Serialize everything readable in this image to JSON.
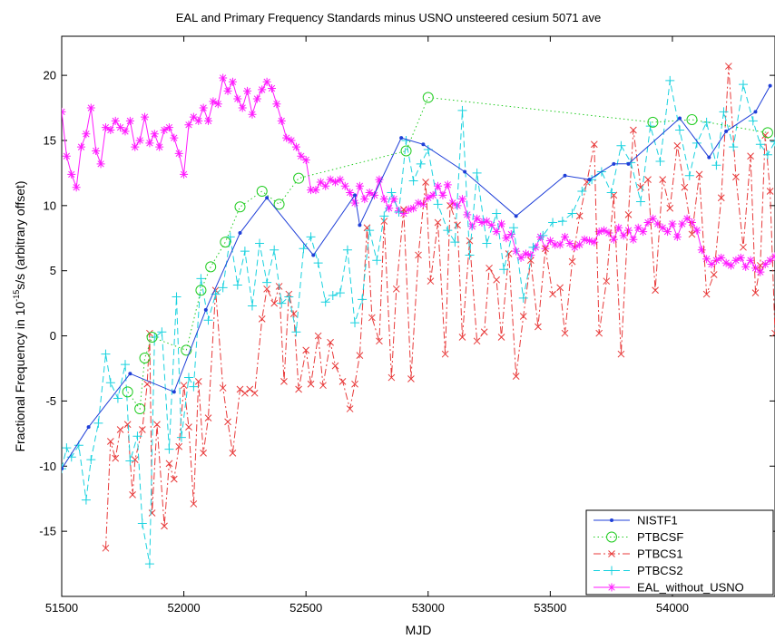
{
  "chart_data": {
    "type": "line",
    "title": "EAL and Primary Frequency Standards minus USNO unsteered cesium 5071 ave",
    "xlabel": "MJD",
    "ylabel_prefix": "Fractional Frequency in 10",
    "ylabel_exponent": "-15",
    "ylabel_suffix": "s/s (arbitrary offset)",
    "xlim": [
      51500,
      54420
    ],
    "ylim": [
      -20,
      23
    ],
    "x_ticks": [
      51500,
      52000,
      52500,
      53000,
      53500,
      54000
    ],
    "x_tick_labels": [
      "51500",
      "52000",
      "52500",
      "53000",
      "53500",
      "54000"
    ],
    "y_ticks": [
      -20,
      -15,
      -10,
      -5,
      0,
      5,
      10,
      15,
      20
    ],
    "y_tick_labels": [
      "-20",
      "-15",
      "-10",
      "-5",
      "0",
      "5",
      "10",
      "15",
      "20"
    ],
    "grid": false,
    "legend_position": "bottom-right",
    "series": [
      {
        "name": "NISTF1",
        "color": "#1f3fd8",
        "line": "solid",
        "marker": "dot",
        "x": [
          51500,
          51610,
          51780,
          51960,
          52090,
          52230,
          52340,
          52530,
          52700,
          52720,
          52890,
          52980,
          53150,
          53360,
          53560,
          53660,
          53760,
          53820,
          54030,
          54150,
          54220,
          54340,
          54400
        ],
        "y": [
          -10.2,
          -7.0,
          -2.9,
          -4.3,
          2.0,
          7.9,
          10.6,
          6.2,
          10.8,
          8.5,
          15.2,
          14.7,
          12.6,
          9.2,
          12.3,
          12.0,
          13.2,
          13.2,
          16.7,
          13.7,
          15.7,
          17.2,
          19.2
        ]
      },
      {
        "name": "PTBCSF",
        "color": "#22cc22",
        "line": "dotted",
        "marker": "circle",
        "x": [
          51770,
          51820,
          51840,
          51870,
          52010,
          52070,
          52110,
          52170,
          52230,
          52320,
          52390,
          52470,
          52910,
          53000,
          53920,
          54080,
          54390
        ],
        "y": [
          -4.3,
          -5.6,
          -1.7,
          -0.1,
          -1.1,
          3.5,
          5.3,
          7.2,
          9.9,
          11.1,
          10.1,
          12.1,
          14.2,
          18.3,
          16.4,
          16.6,
          15.6
        ]
      },
      {
        "name": "PTBCS1",
        "color": "#e83a3a",
        "line": "dashdot",
        "marker": "x",
        "x": [
          51680,
          51700,
          51720,
          51740,
          51770,
          51790,
          51800,
          51830,
          51850,
          51860,
          51870,
          51890,
          51920,
          51940,
          51960,
          51980,
          52000,
          52020,
          52040,
          52060,
          52080,
          52100,
          52130,
          52160,
          52180,
          52200,
          52230,
          52250,
          52270,
          52290,
          52320,
          52340,
          52370,
          52390,
          52410,
          52430,
          52450,
          52470,
          52500,
          52520,
          52550,
          52570,
          52600,
          52620,
          52650,
          52680,
          52700,
          52720,
          52750,
          52770,
          52800,
          52820,
          52850,
          52870,
          52900,
          52930,
          52960,
          52990,
          53010,
          53040,
          53070,
          53090,
          53120,
          53140,
          53170,
          53200,
          53230,
          53250,
          53280,
          53300,
          53330,
          53360,
          53390,
          53420,
          53450,
          53480,
          53510,
          53540,
          53560,
          53590,
          53620,
          53650,
          53680,
          53700,
          53730,
          53760,
          53790,
          53820,
          53840,
          53870,
          53900,
          53930,
          53960,
          53990,
          54020,
          54050,
          54080,
          54110,
          54140,
          54170,
          54200,
          54230,
          54260,
          54290,
          54320,
          54340,
          54360,
          54380,
          54400,
          54420
        ],
        "y": [
          -16.3,
          -8.1,
          -9.4,
          -7.2,
          -6.8,
          -12.2,
          -9.5,
          -7.2,
          -3.7,
          0.2,
          -13.6,
          -6.8,
          -14.6,
          -9.8,
          -11.0,
          -8.5,
          -3.8,
          -7.0,
          -12.9,
          -3.5,
          -9.0,
          -6.3,
          3.5,
          -4.0,
          -6.6,
          -9.0,
          -4.1,
          -4.4,
          -4.1,
          -4.4,
          1.3,
          3.6,
          2.5,
          3.8,
          -3.5,
          3.2,
          1.7,
          -4.1,
          -1.1,
          -3.7,
          0.0,
          -3.8,
          -0.5,
          -2.3,
          -3.5,
          -5.6,
          -3.7,
          -1.5,
          8.3,
          1.4,
          -0.4,
          8.8,
          -3.2,
          3.6,
          9.7,
          -3.3,
          6.2,
          11.8,
          4.2,
          8.7,
          -1.4,
          10.0,
          8.5,
          -0.1,
          7.3,
          -0.4,
          0.3,
          5.2,
          4.3,
          -0.1,
          6.3,
          -3.1,
          1.5,
          5.8,
          0.7,
          6.7,
          3.2,
          3.7,
          0.2,
          5.7,
          9.2,
          11.8,
          14.7,
          0.2,
          4.2,
          10.8,
          -1.4,
          9.3,
          15.8,
          11.4,
          12.0,
          3.5,
          12.0,
          9.8,
          14.6,
          11.4,
          7.8,
          12.4,
          3.2,
          4.7,
          10.6,
          20.7,
          12.2,
          6.8,
          13.8,
          3.3,
          5.4,
          15.4,
          11.1,
          0.2
        ]
      },
      {
        "name": "PTBCS2",
        "color": "#19d2df",
        "line": "dashed",
        "marker": "plus",
        "x": [
          51500,
          51520,
          51540,
          51570,
          51600,
          51620,
          51650,
          51680,
          51700,
          51730,
          51760,
          51780,
          51810,
          51830,
          51860,
          51880,
          51910,
          51940,
          51970,
          51990,
          52020,
          52040,
          52070,
          52100,
          52130,
          52160,
          52190,
          52220,
          52250,
          52280,
          52310,
          52340,
          52370,
          52400,
          52430,
          52460,
          52490,
          52520,
          52550,
          52580,
          52610,
          52640,
          52670,
          52700,
          52730,
          52760,
          52790,
          52820,
          52850,
          52880,
          52910,
          52940,
          52970,
          53000,
          53040,
          53080,
          53110,
          53140,
          53170,
          53200,
          53240,
          53280,
          53310,
          53350,
          53390,
          53430,
          53470,
          53510,
          53550,
          53590,
          53630,
          53670,
          53710,
          53750,
          53790,
          53830,
          53870,
          53910,
          53950,
          53990,
          54030,
          54070,
          54100,
          54140,
          54180,
          54210,
          54250,
          54290,
          54330,
          54360,
          54390,
          54420
        ],
        "y": [
          -10.2,
          -8.6,
          -9.3,
          -8.4,
          -12.6,
          -9.5,
          -6.7,
          -1.4,
          -3.6,
          -4.8,
          -2.2,
          -9.6,
          -7.7,
          -14.4,
          -17.5,
          -0.1,
          0.3,
          -8.7,
          3.0,
          -7.8,
          -3.2,
          -3.9,
          4.4,
          1.2,
          3.2,
          3.7,
          7.6,
          3.9,
          6.5,
          2.3,
          7.1,
          4.1,
          6.6,
          2.5,
          3.0,
          0.3,
          6.7,
          7.6,
          5.6,
          2.6,
          3.1,
          3.3,
          6.6,
          1.0,
          2.8,
          8.1,
          5.8,
          9.2,
          11.0,
          9.5,
          15.0,
          11.9,
          13.2,
          14.3,
          10.1,
          8.1,
          7.2,
          17.3,
          6.2,
          12.5,
          7.1,
          9.4,
          5.1,
          8.3,
          2.9,
          6.8,
          7.7,
          8.7,
          8.8,
          9.4,
          11.1,
          12.0,
          12.6,
          11.0,
          14.6,
          13.3,
          10.3,
          16.1,
          13.4,
          19.6,
          15.8,
          12.3,
          14.8,
          16.4,
          13.1,
          17.2,
          14.5,
          19.3,
          16.5,
          14.7,
          13.9,
          14.9
        ]
      },
      {
        "name": "EAL_without_USNO",
        "color": "#ff1aff",
        "line": "solid",
        "marker": "asterisk",
        "x": [
          51500,
          51520,
          51540,
          51560,
          51580,
          51600,
          51620,
          51640,
          51660,
          51680,
          51700,
          51720,
          51740,
          51760,
          51780,
          51800,
          51820,
          51840,
          51860,
          51880,
          51900,
          51920,
          51940,
          51960,
          51980,
          52000,
          52020,
          52040,
          52060,
          52080,
          52100,
          52120,
          52140,
          52160,
          52180,
          52200,
          52220,
          52240,
          52260,
          52280,
          52300,
          52320,
          52340,
          52360,
          52380,
          52400,
          52420,
          52440,
          52460,
          52480,
          52500,
          52520,
          52540,
          52560,
          52580,
          52600,
          52620,
          52640,
          52660,
          52680,
          52700,
          52720,
          52740,
          52760,
          52780,
          52800,
          52820,
          52840,
          52860,
          52880,
          52900,
          52920,
          52940,
          52960,
          52980,
          53000,
          53020,
          53040,
          53060,
          53080,
          53100,
          53120,
          53140,
          53160,
          53180,
          53200,
          53220,
          53240,
          53260,
          53280,
          53300,
          53320,
          53340,
          53360,
          53380,
          53400,
          53420,
          53440,
          53460,
          53480,
          53500,
          53520,
          53540,
          53560,
          53580,
          53600,
          53620,
          53640,
          53660,
          53680,
          53700,
          53720,
          53740,
          53760,
          53780,
          53800,
          53820,
          53840,
          53860,
          53880,
          53900,
          53920,
          53940,
          53960,
          53980,
          54000,
          54020,
          54040,
          54060,
          54080,
          54100,
          54120,
          54140,
          54160,
          54180,
          54200,
          54220,
          54240,
          54260,
          54280,
          54300,
          54320,
          54340,
          54360,
          54380,
          54400,
          54420
        ],
        "y": [
          17.2,
          13.8,
          12.4,
          11.4,
          14.5,
          15.5,
          17.5,
          14.2,
          13.2,
          16.0,
          15.8,
          16.5,
          16.0,
          15.7,
          16.5,
          14.5,
          15.0,
          16.8,
          14.8,
          15.5,
          14.5,
          15.8,
          16.0,
          15.2,
          14.0,
          12.4,
          16.2,
          16.8,
          16.5,
          17.5,
          16.5,
          18.0,
          17.8,
          19.8,
          18.8,
          19.5,
          18.2,
          17.5,
          18.8,
          17.0,
          18.2,
          18.9,
          19.5,
          19.0,
          17.8,
          16.5,
          15.2,
          15.0,
          14.5,
          13.8,
          13.5,
          11.2,
          11.2,
          11.8,
          11.5,
          12.0,
          11.8,
          12.0,
          11.5,
          11.0,
          10.2,
          11.5,
          10.5,
          11.0,
          10.8,
          12.0,
          10.5,
          9.8,
          10.5,
          9.6,
          9.4,
          9.7,
          9.8,
          10.2,
          10.1,
          10.6,
          10.8,
          11.5,
          10.8,
          11.6,
          10.2,
          10.0,
          10.5,
          9.3,
          8.4,
          9.0,
          8.7,
          8.8,
          8.5,
          8.0,
          8.6,
          7.5,
          7.8,
          6.5,
          6.0,
          6.3,
          6.2,
          6.8,
          7.6,
          6.7,
          7.3,
          7.0,
          7.0,
          7.6,
          7.1,
          6.8,
          7.0,
          7.4,
          7.3,
          7.2,
          8.0,
          8.1,
          7.9,
          7.4,
          8.3,
          7.7,
          8.1,
          7.4,
          8.3,
          8.0,
          8.7,
          9.0,
          8.6,
          8.3,
          8.0,
          8.6,
          7.6,
          8.6,
          9.0,
          8.7,
          8.1,
          6.6,
          5.9,
          5.5,
          5.8,
          6.0,
          5.6,
          5.4,
          5.8,
          6.0,
          5.3,
          5.8,
          5.2,
          4.9,
          5.5,
          5.8,
          6.1
        ]
      }
    ]
  }
}
